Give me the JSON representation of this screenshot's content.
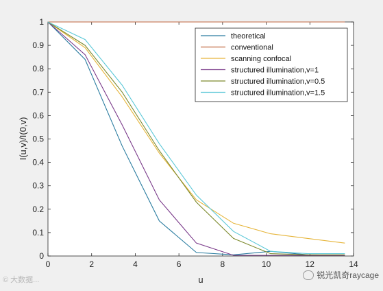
{
  "chart_data": {
    "type": "line",
    "title": "",
    "xlabel": "u",
    "ylabel": "I(u,v)/I(0,v)",
    "xlim": [
      0,
      14
    ],
    "ylim": [
      0,
      1
    ],
    "xticks": [
      0,
      2,
      4,
      6,
      8,
      10,
      12,
      14
    ],
    "yticks": [
      0,
      0.1,
      0.2,
      0.3,
      0.4,
      0.5,
      0.6,
      0.7,
      0.8,
      0.9,
      1
    ],
    "grid": false,
    "legend_position": "top-right",
    "series": [
      {
        "name": "theoretical",
        "color": "#2a7ca0",
        "x": [
          0,
          1.7,
          3.4,
          5.1,
          6.8,
          8.5,
          10.2,
          11.9,
          13.6
        ],
        "y": [
          1,
          0.84,
          0.47,
          0.15,
          0.015,
          0.005,
          0.02,
          0.005,
          0.003
        ]
      },
      {
        "name": "conventional",
        "color": "#c0653e",
        "x": [
          0,
          1.7,
          3.4,
          5.1,
          6.8,
          8.5,
          10.2,
          11.9,
          13.6
        ],
        "y": [
          1,
          1,
          1,
          1,
          1,
          1,
          1,
          1,
          1
        ]
      },
      {
        "name": "scanning confocal",
        "color": "#e6b53a",
        "x": [
          0,
          1.7,
          3.4,
          5.1,
          6.8,
          8.5,
          10.2,
          11.9,
          13.6
        ],
        "y": [
          1,
          0.89,
          0.68,
          0.44,
          0.24,
          0.14,
          0.095,
          0.075,
          0.055
        ]
      },
      {
        "name": "structured illumination,v=1",
        "color": "#7a3a8a",
        "x": [
          0,
          1.7,
          3.4,
          5.1,
          6.8,
          8.5,
          10.2,
          11.9,
          13.6
        ],
        "y": [
          1,
          0.86,
          0.56,
          0.24,
          0.055,
          0.003,
          0.003,
          0.003,
          0.003
        ]
      },
      {
        "name": "structured illumination,v=0.5",
        "color": "#7d8a2e",
        "x": [
          0,
          1.7,
          3.4,
          5.1,
          6.8,
          8.5,
          10.2,
          11.9,
          13.6
        ],
        "y": [
          1,
          0.9,
          0.7,
          0.45,
          0.23,
          0.075,
          0.01,
          0.005,
          0.005
        ]
      },
      {
        "name": "structured illumination,v=1.5",
        "color": "#5cc8d8",
        "x": [
          0,
          1.7,
          3.4,
          5.1,
          6.8,
          8.5,
          10.2,
          11.9,
          13.6
        ],
        "y": [
          1,
          0.925,
          0.73,
          0.48,
          0.26,
          0.105,
          0.02,
          0.01,
          0.01
        ]
      }
    ]
  },
  "watermarks": {
    "left": "© 大数据...",
    "right": "锐光凯奇raycage"
  }
}
